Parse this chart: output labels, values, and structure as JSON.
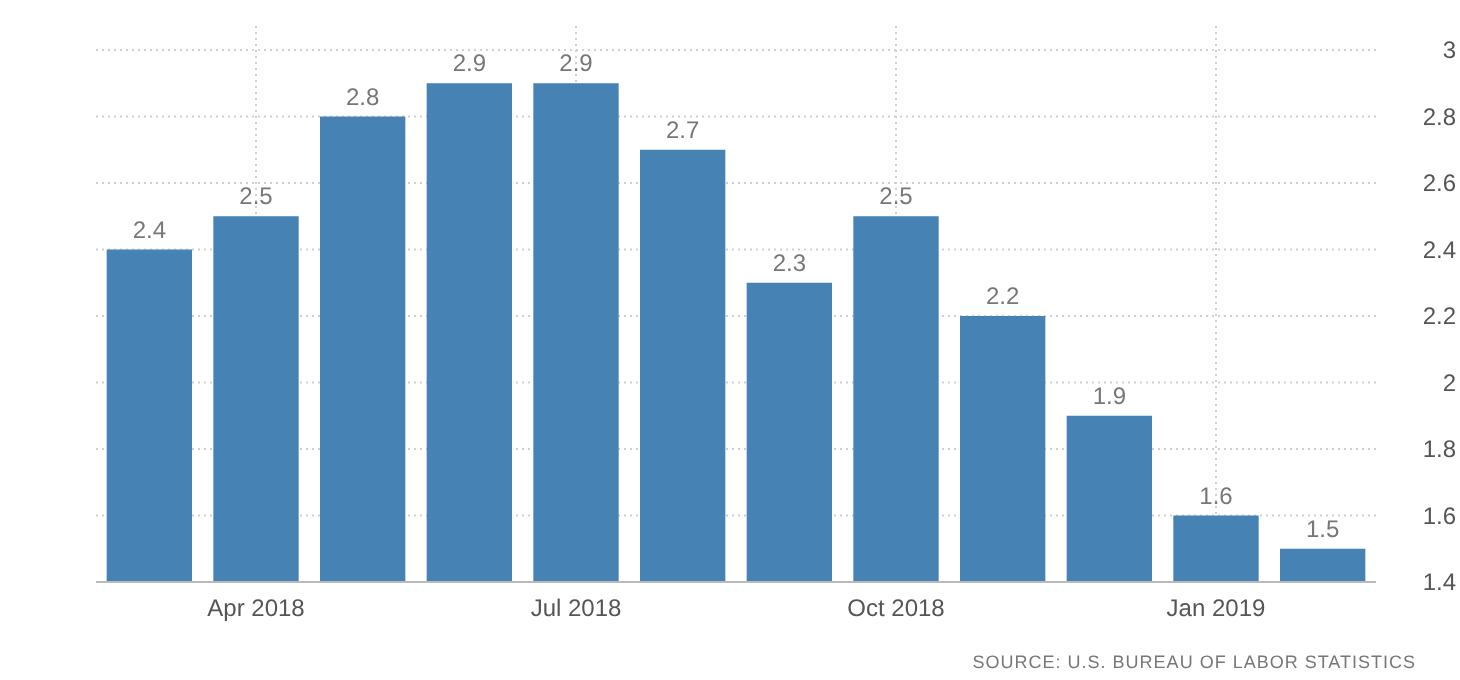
{
  "chart_data": {
    "type": "bar",
    "categories": [
      null,
      "Apr 2018",
      null,
      null,
      "Jul 2018",
      null,
      null,
      "Oct 2018",
      null,
      null,
      "Jan 2019",
      null
    ],
    "values": [
      2.4,
      2.5,
      2.8,
      2.9,
      2.9,
      2.7,
      2.3,
      2.5,
      2.2,
      1.9,
      1.6,
      1.5
    ],
    "color": "#4682b4",
    "ylim": [
      1.4,
      3
    ],
    "yticks": [
      1.4,
      1.6,
      1.8,
      2,
      2.2,
      2.4,
      2.6,
      2.8,
      3
    ],
    "grid": true,
    "data_labels": true,
    "annotations": [
      "SOURCE: U.S. BUREAU OF LABOR STATISTICS"
    ]
  }
}
